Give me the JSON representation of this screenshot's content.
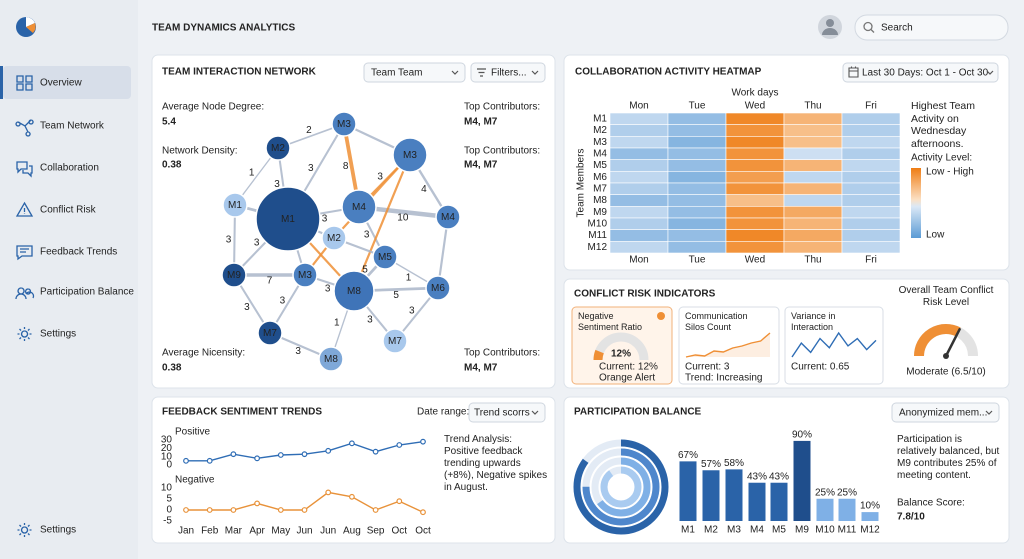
{
  "sidebar": {
    "nav": [
      "Overview",
      "Team Network",
      "Collaboration",
      "Conflict Risk",
      "Feedback Trends",
      "Participation Balance",
      "Settings"
    ],
    "active": 0,
    "footer": "Settings"
  },
  "header": {
    "title": "TEAM DYNAMICS ANALYTICS",
    "search": "Search"
  },
  "network": {
    "title": "TEAM INTERACTION NETWORK",
    "team_select": "Team Team",
    "filters": "Filters...",
    "stats_left": [
      {
        "label": "Average Node Degree:",
        "value": 5.4
      },
      {
        "label": "Network Density:",
        "value": 0.38
      },
      {
        "label": "Average Nicensity:",
        "value": 0.38
      }
    ],
    "stats_right": [
      {
        "label": "Top Contributors:",
        "value": "M4, M7"
      },
      {
        "label": "Top Contributors:",
        "value": "M4, M7"
      },
      {
        "label": "Top Contributors:",
        "value": "M4, M7"
      }
    ],
    "nodes": [
      {
        "label": "M3",
        "color": "#4a7fc0"
      },
      {
        "label": "M2",
        "color": "#1f4e8c"
      },
      {
        "label": "M3",
        "color": "#4a7fc0"
      },
      {
        "label": "M1",
        "color": "#a8c8ec"
      },
      {
        "label": "M1",
        "color": "#1f4e8c"
      },
      {
        "label": "M4",
        "color": "#4a7fc0"
      },
      {
        "label": "M2",
        "color": "#a8c8ec"
      },
      {
        "label": "M4",
        "color": "#4a7fc0"
      },
      {
        "label": "M9",
        "color": "#1f4e8c"
      },
      {
        "label": "M3",
        "color": "#4a7fc0"
      },
      {
        "label": "M5",
        "color": "#4a7fc0"
      },
      {
        "label": "M8",
        "color": "#3f74b8"
      },
      {
        "label": "M6",
        "color": "#4a7fc0"
      },
      {
        "label": "M7",
        "color": "#1f4e8c"
      },
      {
        "label": "M8",
        "color": "#7fa8d8"
      },
      {
        "label": "M7",
        "color": "#a8c8ec"
      }
    ],
    "edges": [
      {
        "from": 0,
        "to": 1,
        "weight": 2,
        "color": "#aab6c9"
      },
      {
        "from": 1,
        "to": 3,
        "weight": 1,
        "color": "#aab6c9"
      },
      {
        "from": 1,
        "to": 4,
        "weight": 3,
        "color": "#aab6c9"
      },
      {
        "from": 3,
        "to": 4,
        "weight": 5,
        "color": "#aab6c9"
      },
      {
        "from": 0,
        "to": 4,
        "weight": 3,
        "color": "#aab6c9"
      },
      {
        "from": 4,
        "to": 5,
        "weight": 3,
        "color": "#aab6c9"
      },
      {
        "from": 0,
        "to": 5,
        "weight": 8,
        "color": "#ef8f35"
      },
      {
        "from": 2,
        "to": 5,
        "weight": 3,
        "color": "#ef8f35"
      },
      {
        "from": 2,
        "to": 6,
        "color": "#ef8f35"
      },
      {
        "from": 2,
        "to": 7,
        "weight": 4,
        "color": "#aab6c9"
      },
      {
        "from": 5,
        "to": 7,
        "weight": 10,
        "color": "#aab6c9"
      },
      {
        "from": 5,
        "to": 10,
        "weight": 3,
        "color": "#aab6c9"
      },
      {
        "from": 4,
        "to": 6,
        "weight": 3,
        "color": "#aab6c9"
      },
      {
        "from": 4,
        "to": 8,
        "weight": 3,
        "color": "#aab6c9"
      },
      {
        "from": 4,
        "to": 9,
        "weight": 3,
        "color": "#aab6c9"
      },
      {
        "from": 8,
        "to": 9,
        "weight": 7,
        "color": "#aab6c9"
      },
      {
        "from": 9,
        "to": 11,
        "weight": 3,
        "color": "#aab6c9"
      },
      {
        "from": 4,
        "to": 11,
        "color": "#ef8f35"
      },
      {
        "from": 2,
        "to": 11,
        "color": "#ef8f35"
      },
      {
        "from": 10,
        "to": 11,
        "weight": 5,
        "color": "#aab6c9"
      },
      {
        "from": 10,
        "to": 12,
        "weight": 1,
        "color": "#aab6c9"
      },
      {
        "from": 11,
        "to": 12,
        "weight": 5,
        "color": "#aab6c9"
      },
      {
        "from": 8,
        "to": 13,
        "weight": 3,
        "color": "#aab6c9"
      },
      {
        "from": 9,
        "to": 13,
        "weight": 3,
        "color": "#aab6c9"
      },
      {
        "from": 13,
        "to": 14,
        "weight": 3,
        "color": "#aab6c9"
      },
      {
        "from": 11,
        "to": 14,
        "weight": 1,
        "color": "#aab6c9"
      },
      {
        "from": 11,
        "to": 15,
        "weight": 3,
        "color": "#aab6c9"
      },
      {
        "from": 12,
        "to": 15,
        "weight": 3,
        "color": "#aab6c9"
      },
      {
        "from": 7,
        "to": 12,
        "color": "#aab6c9"
      },
      {
        "from": 3,
        "to": 8,
        "weight": 3,
        "color": "#aab6c9"
      },
      {
        "from": 0,
        "to": 2,
        "color": "#aab6c9"
      },
      {
        "from": 6,
        "to": 10,
        "color": "#aab6c9"
      },
      {
        "from": 6,
        "to": 9,
        "color": "#ef8f35"
      }
    ]
  },
  "heatmap": {
    "title": "COLLABORATION ACTIVITY HEATMAP",
    "date_range": "Last 30 Days: Oct 1 - Oct 30",
    "x_title": "Work days",
    "y_title": "Team Members",
    "columns": [
      "Mon",
      "Tue",
      "Wed",
      "Thu",
      "Fri"
    ],
    "rows": [
      {
        "name": "M1",
        "values": [
          0.35,
          0.2,
          0.95,
          0.75,
          0.3
        ]
      },
      {
        "name": "M2",
        "values": [
          0.3,
          0.2,
          0.9,
          0.7,
          0.3
        ]
      },
      {
        "name": "M3",
        "values": [
          0.35,
          0.15,
          0.95,
          0.7,
          0.35
        ]
      },
      {
        "name": "M4",
        "values": [
          0.2,
          0.2,
          0.9,
          0.4,
          0.3
        ]
      },
      {
        "name": "M5",
        "values": [
          0.3,
          0.2,
          0.9,
          0.75,
          0.35
        ]
      },
      {
        "name": "M6",
        "values": [
          0.35,
          0.15,
          0.85,
          0.35,
          0.3
        ]
      },
      {
        "name": "M7",
        "values": [
          0.3,
          0.2,
          0.9,
          0.75,
          0.3
        ]
      },
      {
        "name": "M8",
        "values": [
          0.2,
          0.2,
          0.7,
          0.35,
          0.3
        ]
      },
      {
        "name": "M9",
        "values": [
          0.35,
          0.2,
          0.9,
          0.8,
          0.35
        ]
      },
      {
        "name": "M10",
        "values": [
          0.3,
          0.15,
          0.9,
          0.75,
          0.3
        ]
      },
      {
        "name": "M11",
        "values": [
          0.2,
          0.2,
          0.95,
          0.8,
          0.3
        ]
      },
      {
        "name": "M12",
        "values": [
          0.35,
          0.2,
          0.9,
          0.75,
          0.35
        ]
      }
    ],
    "range": [
      0,
      1
    ],
    "colors": [
      "#5b9bd5",
      "#dbe8f6",
      "#fbe0c4",
      "#ef7d14"
    ],
    "note": "Highest Team Activity on Wednesday afternoons.",
    "legend_title": "Activity Level:",
    "legend_high": "Low - High",
    "legend_low": "Low"
  },
  "conflict": {
    "title": "CONFLICT RISK INDICATORS",
    "cards": [
      {
        "title": "Negative Sentiment Ratio",
        "value": 12,
        "value_label": "12%",
        "range": [
          0,
          100
        ],
        "lines": [
          "Current: 12%",
          "Orange Alert"
        ],
        "color": "#ef8f35"
      },
      {
        "title": "Communication Silos Count",
        "trend": [
          2,
          2.2,
          2.1,
          2.6,
          2.5,
          2.9,
          3.1,
          3.4,
          3.6,
          4.4
        ],
        "lines": [
          "Current: 3",
          "Trend: Increasing"
        ],
        "color": "#ef8f35"
      },
      {
        "title": "Variance in Interaction",
        "trend": [
          1,
          2.5,
          1.5,
          3,
          2,
          3.6,
          2.2,
          3,
          1.8,
          2.8
        ],
        "lines": [
          "Current: 0.65"
        ],
        "color": "#2f6db5"
      }
    ],
    "overall": {
      "title": "Overall Team Conflict Risk Level",
      "score": 6.5,
      "max": 10,
      "label": "Moderate (6.5/10)",
      "color": "#ef8f35"
    }
  },
  "feedback": {
    "title": "FEEDBACK SENTIMENT TRENDS",
    "date_label": "Date range:",
    "date_select": "Trend scorrs",
    "categories": [
      "Jan",
      "Feb",
      "Mar",
      "Apr",
      "May",
      "Jun",
      "Jun",
      "Aug",
      "Sep",
      "Oct",
      "Oct"
    ],
    "panels": [
      {
        "name": "Positive",
        "color": "#2f6db5",
        "values": [
          5,
          5,
          13,
          8,
          12,
          13,
          17,
          26,
          16,
          24,
          28
        ],
        "ylim": [
          0,
          30
        ],
        "yticks": [
          0,
          10,
          20,
          30
        ]
      },
      {
        "name": "Negative",
        "color": "#e8923a",
        "values": [
          0,
          0,
          0,
          3,
          0,
          0,
          8,
          6,
          0,
          4,
          -1
        ],
        "ylim": [
          -5,
          10
        ],
        "yticks": [
          -5,
          0,
          5,
          10
        ]
      }
    ],
    "note_title": "Trend Analysis:",
    "note": "Positive feedback trending upwards (+8%), Negative spikes in August."
  },
  "participation": {
    "title": "PARTICIPATION BALANCE",
    "select": "Anonymized mem...",
    "categories": [
      "M1",
      "M2",
      "M3",
      "M4",
      "M5",
      "M9",
      "M10",
      "M11",
      "M12"
    ],
    "values": [
      67,
      57,
      58,
      43,
      43,
      90,
      25,
      25,
      10
    ],
    "value_labels": [
      "67%",
      "57%",
      "58%",
      "43%",
      "43%",
      "90%",
      "25%",
      "25%",
      "10%"
    ],
    "colors": [
      "#2a63a8",
      "#2a63a8",
      "#2a63a8",
      "#2a63a8",
      "#2a63a8",
      "#1f4e8c",
      "#7fb0e6",
      "#7fb0e6",
      "#7fb0e6"
    ],
    "ylim": [
      0,
      100
    ],
    "note": "Participation is relatively balanced, but M9 contributes 25% of meeting content.",
    "score_label": "Balance Score:",
    "score": "7.8/10"
  }
}
